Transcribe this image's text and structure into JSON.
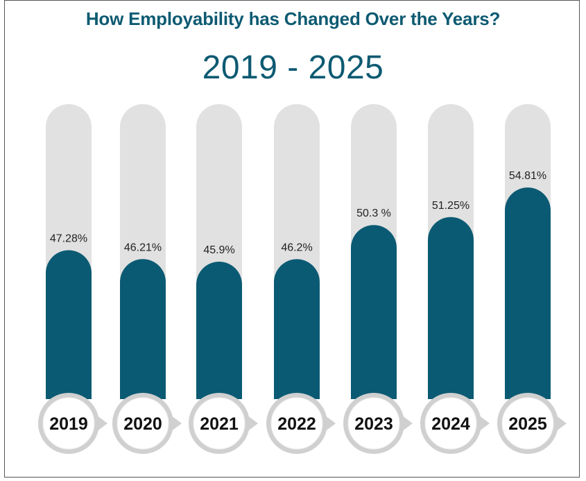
{
  "header": {
    "title": "How Employability has Changed Over the Years?",
    "subtitle": "2019 - 2025"
  },
  "colors": {
    "track": "#e1e1e1",
    "fill": "#0b5a73",
    "text": "#111111",
    "circle_ring": "#d0d0d0",
    "circle_inner": "#ffffff"
  },
  "chart_data": {
    "type": "bar",
    "title": "How Employability has Changed Over the Years?",
    "subtitle": "2019 - 2025",
    "categories": [
      "2019",
      "2020",
      "2021",
      "2022",
      "2023",
      "2024",
      "2025"
    ],
    "values": [
      47.28,
      46.21,
      45.9,
      46.2,
      50.3,
      51.25,
      54.81
    ],
    "value_labels": [
      "47.28%",
      "46.21%",
      "45.9%",
      "46.2%",
      "50.3 %",
      "51.25%",
      "54.81%"
    ],
    "xlabel": "",
    "ylabel": "",
    "grid": false,
    "legend": "none"
  }
}
